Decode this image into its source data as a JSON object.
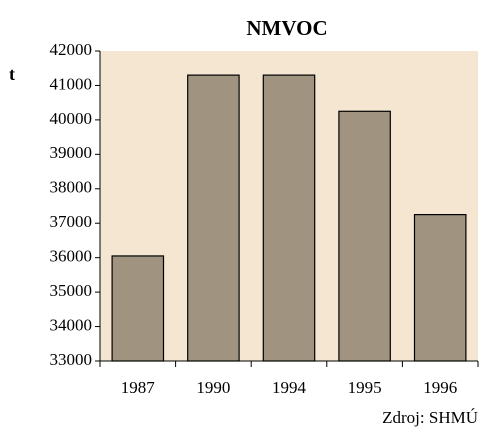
{
  "chart_data": {
    "type": "bar",
    "title": "NMVOC",
    "y_label": "t",
    "source": "Zdroj: SHMÚ",
    "categories": [
      "1987",
      "1990",
      "1994",
      "1995",
      "1996"
    ],
    "values": [
      36050,
      41300,
      41300,
      40250,
      37250
    ],
    "color": "#a09480",
    "plot_background": "#f5e6d2",
    "ylim": [
      33000,
      42000
    ],
    "yticks": [
      33000,
      34000,
      35000,
      36000,
      37000,
      38000,
      39000,
      40000,
      41000,
      42000
    ],
    "grid": false
  }
}
